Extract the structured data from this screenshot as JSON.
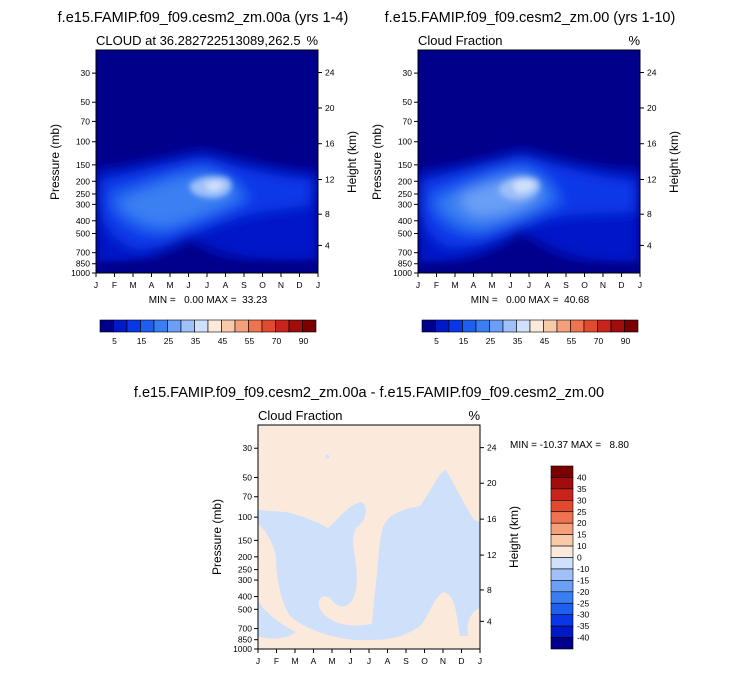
{
  "chart_data": [
    {
      "type": "contour",
      "title": "f.e15.FAMIP.f09_f09.cesm2_zm.00a (yrs 1-4)",
      "left_label": "CLOUD at 36.282722513089,262.5",
      "right_label": "%",
      "xlabel": "",
      "ylabel": "Pressure (mb)",
      "ylabel_right": "Height (km)",
      "x_ticks": [
        "J",
        "F",
        "M",
        "A",
        "M",
        "J",
        "J",
        "A",
        "S",
        "O",
        "N",
        "D",
        "J"
      ],
      "y_ticks": [
        30,
        50,
        70,
        100,
        150,
        200,
        250,
        300,
        400,
        500,
        700,
        850,
        1000
      ],
      "y_ticks_right": [
        24,
        20,
        16,
        12,
        8,
        4
      ],
      "ylim": [
        1000,
        20
      ],
      "min": "0.00",
      "max": "33.23",
      "stats_text": "MIN =   0.00 MAX =  33.23",
      "colorbar_labels": [
        "5",
        "15",
        "25",
        "35",
        "45",
        "55",
        "70",
        "90"
      ],
      "palette": [
        "#00008b",
        "#0019c8",
        "#0837e8",
        "#1f5ff0",
        "#3a7ff2",
        "#6b9ff5",
        "#9fc0f8",
        "#cfe0fb",
        "#fbeadb",
        "#f9caa9",
        "#f5a07a",
        "#ef7350",
        "#e24a30",
        "#c8241c",
        "#a10c0c",
        "#7a0000"
      ],
      "peak_value": 33.23,
      "peak_month": 4.5,
      "peak_pressure": 220
    },
    {
      "type": "contour",
      "title": "f.e15.FAMIP.f09_f09.cesm2_zm.00 (yrs 1-10)",
      "left_label": "Cloud Fraction",
      "right_label": "%",
      "xlabel": "",
      "ylabel": "Pressure (mb)",
      "ylabel_right": "Height (km)",
      "x_ticks": [
        "J",
        "F",
        "M",
        "A",
        "M",
        "J",
        "J",
        "A",
        "S",
        "O",
        "N",
        "D",
        "J"
      ],
      "y_ticks": [
        30,
        50,
        70,
        100,
        150,
        200,
        250,
        300,
        400,
        500,
        700,
        850,
        1000
      ],
      "y_ticks_right": [
        24,
        20,
        16,
        12,
        8,
        4
      ],
      "ylim": [
        1000,
        20
      ],
      "min": "0.00",
      "max": "40.68",
      "stats_text": "MIN =   0.00 MAX =  40.68",
      "colorbar_labels": [
        "5",
        "15",
        "25",
        "35",
        "45",
        "55",
        "70",
        "90"
      ],
      "palette": [
        "#00008b",
        "#0019c8",
        "#0837e8",
        "#1f5ff0",
        "#3a7ff2",
        "#6b9ff5",
        "#9fc0f8",
        "#cfe0fb",
        "#fbeadb",
        "#f9caa9",
        "#f5a07a",
        "#ef7350",
        "#e24a30",
        "#c8241c",
        "#a10c0c",
        "#7a0000"
      ],
      "peak_value": 40.68,
      "peak_month": 4.8,
      "peak_pressure": 210
    },
    {
      "type": "contour",
      "title": "f.e15.FAMIP.f09_f09.cesm2_zm.00a - f.e15.FAMIP.f09_f09.cesm2_zm.00",
      "left_label": "Cloud Fraction",
      "right_label": "%",
      "xlabel": "",
      "ylabel": "Pressure (mb)",
      "ylabel_right": "Height (km)",
      "x_ticks": [
        "J",
        "F",
        "M",
        "A",
        "M",
        "J",
        "J",
        "A",
        "S",
        "O",
        "N",
        "D",
        "J"
      ],
      "y_ticks": [
        30,
        50,
        70,
        100,
        150,
        200,
        250,
        300,
        400,
        500,
        700,
        850,
        1000
      ],
      "y_ticks_right": [
        24,
        20,
        16,
        12,
        8,
        4
      ],
      "ylim": [
        1000,
        20
      ],
      "min": "-10.37",
      "max": "8.80",
      "stats_text": "MIN = -10.37 MAX =   8.80",
      "colorbar_labels": [
        "40",
        "35",
        "30",
        "25",
        "20",
        "15",
        "10",
        "0",
        "-10",
        "-15",
        "-20",
        "-25",
        "-30",
        "-35",
        "-40"
      ],
      "palette": [
        "#7a0000",
        "#a10c0c",
        "#c8241c",
        "#e24a30",
        "#ef7350",
        "#f5a07a",
        "#f9caa9",
        "#fbeadb",
        "#cfe0fb",
        "#9fc0f8",
        "#6b9ff5",
        "#3a7ff2",
        "#1f5ff0",
        "#0837e8",
        "#0019c8",
        "#00008b"
      ],
      "positive_color": "#fbeadb",
      "negative_color": "#cfe0fb"
    }
  ]
}
